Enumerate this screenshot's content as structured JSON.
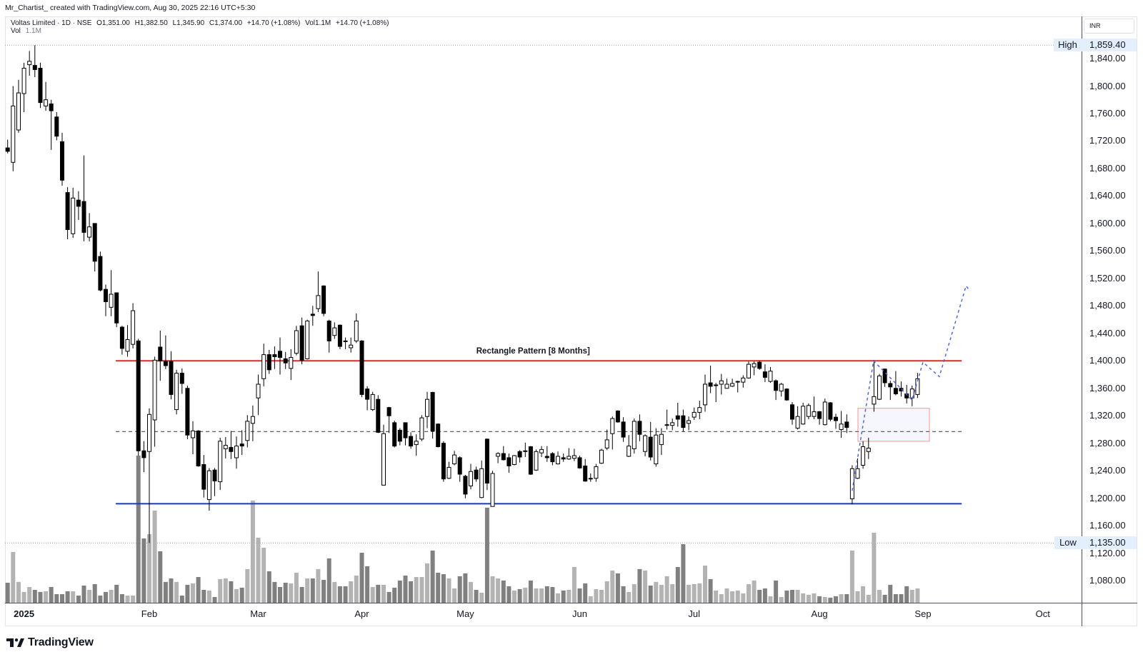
{
  "header": {
    "credit": "Mr_Chartist_ created with TradingView.com, Aug 30, 2025 22:16 UTC+5:30"
  },
  "legend": {
    "symbol": "Voltas Limited · 1D · NSE",
    "open": "O1,351.00",
    "high": "H1,382.50",
    "low": "L1,345.90",
    "close": "C1,374.00",
    "change": "+14.70 (+1.08%)",
    "volume": "Vol1.1M",
    "volume_change": "+14.70 (+1.08%)",
    "vol_row_label": "Vol",
    "vol_row_value": "1.1M"
  },
  "price_axis": {
    "currency": "INR",
    "high_label": "High",
    "high_value": "1,859.40",
    "low_label": "Low",
    "low_value": "1,135.00"
  },
  "branding": {
    "logo_text": "TradingView"
  },
  "chart_data": {
    "type": "candlestick",
    "title": "Voltas Limited · 1D · NSE",
    "xlabel": "",
    "ylabel": "INR",
    "ylim": [
      1048,
      1901
    ],
    "grid": false,
    "legend_position": "top-left",
    "y_ticks": [
      {
        "value": 1840,
        "label": "1,840.00"
      },
      {
        "value": 1800,
        "label": "1,800.00"
      },
      {
        "value": 1760,
        "label": "1,760.00"
      },
      {
        "value": 1720,
        "label": "1,720.00"
      },
      {
        "value": 1680,
        "label": "1,680.00"
      },
      {
        "value": 1640,
        "label": "1,640.00"
      },
      {
        "value": 1600,
        "label": "1,600.00"
      },
      {
        "value": 1560,
        "label": "1,560.00"
      },
      {
        "value": 1520,
        "label": "1,520.00"
      },
      {
        "value": 1480,
        "label": "1,480.00"
      },
      {
        "value": 1440,
        "label": "1,440.00"
      },
      {
        "value": 1400,
        "label": "1,400.00"
      },
      {
        "value": 1360,
        "label": "1,360.00"
      },
      {
        "value": 1320,
        "label": "1,320.00"
      },
      {
        "value": 1280,
        "label": "1,280.00"
      },
      {
        "value": 1240,
        "label": "1,240.00"
      },
      {
        "value": 1200,
        "label": "1,200.00"
      },
      {
        "value": 1160,
        "label": "1,160.00"
      },
      {
        "value": 1120,
        "label": "1,120.00"
      },
      {
        "value": 1080,
        "label": "1,080.00"
      }
    ],
    "x_ticks": [
      {
        "label": "2025",
        "bar": 4,
        "year": true
      },
      {
        "label": "Feb",
        "bar": 27
      },
      {
        "label": "Mar",
        "bar": 47
      },
      {
        "label": "Apr",
        "bar": 66
      },
      {
        "label": "May",
        "bar": 85
      },
      {
        "label": "Jun",
        "bar": 106
      },
      {
        "label": "Jul",
        "bar": 127
      },
      {
        "label": "Aug",
        "bar": 150
      },
      {
        "label": "Sep",
        "bar": 169
      },
      {
        "label": "Oct",
        "bar": 191
      }
    ],
    "high_marker": 1859.4,
    "low_marker": 1135.0,
    "colors": {
      "up_body": "#ffffff",
      "down_body": "#000000",
      "wick": "#000000",
      "volume_up": "#b3b3b3",
      "volume_down": "#808080",
      "resistance": "#e3262b",
      "support": "#1f35c4",
      "midline": "#5d606b",
      "zone_fill": "#f6f6ff",
      "zone_border": "#f3a7aa",
      "projection": "#4f6ae6",
      "marker_line": "#9598a1"
    },
    "ohlc_format": [
      "open",
      "high",
      "low",
      "close"
    ],
    "ohlc": [
      [
        1710,
        1722,
        1702,
        1705
      ],
      [
        1689,
        1800,
        1676,
        1771
      ],
      [
        1736,
        1809,
        1732,
        1790
      ],
      [
        1789,
        1834,
        1762,
        1826
      ],
      [
        1831,
        1851,
        1815,
        1836
      ],
      [
        1830,
        1859.4,
        1813,
        1824
      ],
      [
        1826,
        1834,
        1768,
        1776
      ],
      [
        1771,
        1806,
        1764,
        1780
      ],
      [
        1774,
        1780,
        1707,
        1764
      ],
      [
        1755,
        1762,
        1721,
        1727
      ],
      [
        1719,
        1732,
        1655,
        1663
      ],
      [
        1645,
        1653,
        1577,
        1591
      ],
      [
        1585,
        1652,
        1579,
        1637
      ],
      [
        1634,
        1647,
        1605,
        1625
      ],
      [
        1632,
        1699,
        1574,
        1587
      ],
      [
        1580,
        1615,
        1574,
        1595
      ],
      [
        1600,
        1600,
        1530,
        1545
      ],
      [
        1552,
        1559,
        1501,
        1503
      ],
      [
        1504,
        1511,
        1465,
        1486
      ],
      [
        1478,
        1532,
        1465,
        1497
      ],
      [
        1499,
        1499,
        1449,
        1455
      ],
      [
        1449,
        1451,
        1409,
        1418
      ],
      [
        1414,
        1452,
        1406,
        1431
      ],
      [
        1424,
        1484,
        1418,
        1473
      ],
      [
        1429,
        1432,
        1262,
        1269
      ],
      [
        1269,
        1283,
        1238,
        1259
      ],
      [
        1268,
        1331,
        1135,
        1322
      ],
      [
        1314,
        1406,
        1275,
        1401
      ],
      [
        1420,
        1444,
        1371,
        1400
      ],
      [
        1399,
        1437,
        1388,
        1393
      ],
      [
        1399,
        1414,
        1344,
        1351
      ],
      [
        1329,
        1387,
        1322,
        1382
      ],
      [
        1382,
        1389,
        1352,
        1367
      ],
      [
        1360,
        1364,
        1286,
        1292
      ],
      [
        1288,
        1312,
        1264,
        1298
      ],
      [
        1298,
        1299,
        1246,
        1247
      ],
      [
        1249,
        1263,
        1201,
        1213
      ],
      [
        1198,
        1244,
        1182,
        1240
      ],
      [
        1241,
        1244,
        1203,
        1225
      ],
      [
        1224,
        1288,
        1212,
        1283
      ],
      [
        1272,
        1289,
        1258,
        1277
      ],
      [
        1274,
        1298,
        1257,
        1268
      ],
      [
        1259,
        1290,
        1243,
        1276
      ],
      [
        1279,
        1299,
        1263,
        1276
      ],
      [
        1284,
        1321,
        1274,
        1312
      ],
      [
        1309,
        1335,
        1283,
        1319
      ],
      [
        1346,
        1380,
        1321,
        1366
      ],
      [
        1374,
        1425,
        1363,
        1409
      ],
      [
        1409,
        1416,
        1381,
        1387
      ],
      [
        1409,
        1421,
        1388,
        1406
      ],
      [
        1414,
        1434,
        1380,
        1405
      ],
      [
        1403,
        1413,
        1388,
        1397
      ],
      [
        1389,
        1417,
        1372,
        1405
      ],
      [
        1411,
        1451,
        1408,
        1444
      ],
      [
        1451,
        1463,
        1395,
        1401
      ],
      [
        1403,
        1460,
        1402,
        1458
      ],
      [
        1468,
        1480,
        1451,
        1466
      ],
      [
        1476,
        1530,
        1471,
        1495
      ],
      [
        1509,
        1510,
        1465,
        1469
      ],
      [
        1458,
        1460,
        1412,
        1429
      ],
      [
        1437,
        1456,
        1432,
        1448
      ],
      [
        1452,
        1453,
        1417,
        1421
      ],
      [
        1429,
        1434,
        1417,
        1428
      ],
      [
        1419,
        1434,
        1412,
        1423
      ],
      [
        1429,
        1469,
        1426,
        1458
      ],
      [
        1429,
        1430,
        1347,
        1351
      ],
      [
        1359,
        1363,
        1328,
        1344
      ],
      [
        1329,
        1355,
        1327,
        1351
      ],
      [
        1344,
        1350,
        1295,
        1296
      ],
      [
        1219,
        1307,
        1219,
        1294
      ],
      [
        1332,
        1333,
        1295,
        1320
      ],
      [
        1310,
        1313,
        1274,
        1276
      ],
      [
        1299,
        1302,
        1277,
        1283
      ],
      [
        1310,
        1310,
        1277,
        1288
      ],
      [
        1290,
        1296,
        1272,
        1276
      ],
      [
        1278,
        1293,
        1262,
        1283
      ],
      [
        1286,
        1321,
        1283,
        1317
      ],
      [
        1319,
        1355,
        1302,
        1344
      ],
      [
        1354,
        1355,
        1287,
        1298
      ],
      [
        1308,
        1309,
        1274,
        1275
      ],
      [
        1280,
        1283,
        1224,
        1228
      ],
      [
        1229,
        1253,
        1228,
        1245
      ],
      [
        1250,
        1269,
        1248,
        1263
      ],
      [
        1259,
        1261,
        1224,
        1235
      ],
      [
        1232,
        1234,
        1200,
        1206
      ],
      [
        1218,
        1250,
        1213,
        1239
      ],
      [
        1241,
        1246,
        1224,
        1228
      ],
      [
        1201,
        1255,
        1200,
        1243
      ],
      [
        1286,
        1287,
        1212,
        1222
      ],
      [
        1188,
        1240,
        1188,
        1236
      ],
      [
        1261,
        1267,
        1251,
        1265
      ],
      [
        1265,
        1276,
        1255,
        1256
      ],
      [
        1259,
        1265,
        1237,
        1247
      ],
      [
        1249,
        1263,
        1248,
        1262
      ],
      [
        1268,
        1270,
        1252,
        1260
      ],
      [
        1268,
        1281,
        1260,
        1269
      ],
      [
        1275,
        1276,
        1234,
        1235
      ],
      [
        1241,
        1271,
        1240,
        1268
      ],
      [
        1266,
        1276,
        1260,
        1271
      ],
      [
        1261,
        1276,
        1253,
        1259
      ],
      [
        1265,
        1267,
        1248,
        1253
      ],
      [
        1250,
        1268,
        1249,
        1261
      ],
      [
        1259,
        1265,
        1253,
        1257
      ],
      [
        1257,
        1273,
        1256,
        1261
      ],
      [
        1258,
        1272,
        1254,
        1262
      ],
      [
        1259,
        1262,
        1243,
        1244
      ],
      [
        1247,
        1257,
        1224,
        1225
      ],
      [
        1228,
        1236,
        1224,
        1229
      ],
      [
        1229,
        1250,
        1224,
        1246
      ],
      [
        1251,
        1272,
        1250,
        1270
      ],
      [
        1273,
        1300,
        1270,
        1285
      ],
      [
        1294,
        1319,
        1271,
        1316
      ],
      [
        1327,
        1328,
        1310,
        1311
      ],
      [
        1311,
        1318,
        1282,
        1289
      ],
      [
        1261,
        1292,
        1260,
        1276
      ],
      [
        1272,
        1316,
        1265,
        1312
      ],
      [
        1312,
        1322,
        1283,
        1293
      ],
      [
        1268,
        1293,
        1261,
        1291
      ],
      [
        1289,
        1311,
        1255,
        1260
      ],
      [
        1250,
        1302,
        1246,
        1292
      ],
      [
        1278,
        1302,
        1263,
        1293
      ],
      [
        1306,
        1329,
        1300,
        1307
      ],
      [
        1306,
        1316,
        1299,
        1310
      ],
      [
        1320,
        1339,
        1304,
        1315
      ],
      [
        1320,
        1329,
        1297,
        1303
      ],
      [
        1309,
        1319,
        1299,
        1313
      ],
      [
        1318,
        1332,
        1314,
        1325
      ],
      [
        1325,
        1342,
        1315,
        1332
      ],
      [
        1336,
        1380,
        1326,
        1366
      ],
      [
        1368,
        1393,
        1353,
        1363
      ],
      [
        1364,
        1368,
        1340,
        1365
      ],
      [
        1366,
        1381,
        1351,
        1371
      ],
      [
        1360,
        1374,
        1360,
        1366
      ],
      [
        1363,
        1374,
        1362,
        1367
      ],
      [
        1369,
        1371,
        1354,
        1370
      ],
      [
        1369,
        1379,
        1361,
        1375
      ],
      [
        1375,
        1399,
        1374,
        1395
      ],
      [
        1391,
        1399,
        1379,
        1396
      ],
      [
        1398,
        1400,
        1387,
        1389
      ],
      [
        1384,
        1395,
        1369,
        1376
      ],
      [
        1370,
        1391,
        1368,
        1385
      ],
      [
        1371,
        1373,
        1343,
        1357
      ],
      [
        1356,
        1368,
        1348,
        1366
      ],
      [
        1359,
        1360,
        1342,
        1343
      ],
      [
        1336,
        1340,
        1307,
        1315
      ],
      [
        1302,
        1334,
        1300,
        1319
      ],
      [
        1308,
        1339,
        1307,
        1334
      ],
      [
        1319,
        1338,
        1315,
        1335
      ],
      [
        1319,
        1348,
        1315,
        1326
      ],
      [
        1326,
        1327,
        1307,
        1316
      ],
      [
        1307,
        1345,
        1306,
        1340
      ],
      [
        1339,
        1340,
        1312,
        1315
      ],
      [
        1318,
        1323,
        1301,
        1313
      ],
      [
        1300,
        1327,
        1288,
        1308
      ],
      [
        1311,
        1322,
        1295,
        1303
      ],
      [
        1199,
        1248,
        1191,
        1243
      ],
      [
        1229,
        1258,
        1228,
        1243
      ],
      [
        1248,
        1283,
        1243,
        1275
      ],
      [
        1268,
        1288,
        1257,
        1273
      ],
      [
        1337,
        1401,
        1326,
        1348
      ],
      [
        1344,
        1381,
        1343,
        1378
      ],
      [
        1388,
        1389,
        1362,
        1368
      ],
      [
        1367,
        1371,
        1343,
        1362
      ],
      [
        1360,
        1385,
        1350,
        1352
      ],
      [
        1360,
        1370,
        1348,
        1356
      ],
      [
        1352,
        1365,
        1338,
        1346
      ],
      [
        1346,
        1364,
        1334,
        1359
      ],
      [
        1351,
        1382.5,
        1345.9,
        1374
      ]
    ],
    "volume_unit": "M",
    "volume_m": [
      1.54,
      3.91,
      1.6,
      0.83,
      1.21,
      0.99,
      0.83,
      0.88,
      1.21,
      0.66,
      0.66,
      0.88,
      0.88,
      0.55,
      1.32,
      0.99,
      1.43,
      0.55,
      0.83,
      0.99,
      1.38,
      0.66,
      0.55,
      0.55,
      11.33,
      4.95,
      5.28,
      7.1,
      3.96,
      1.6,
      1.87,
      1.6,
      0.55,
      1.38,
      1.49,
      1.98,
      0.99,
      0.94,
      0.44,
      1.82,
      1.87,
      1.65,
      1.05,
      1.16,
      2.59,
      7.87,
      5.01,
      4.24,
      2.42,
      1.6,
      1.21,
      1.54,
      1.49,
      2.31,
      1.21,
      1.87,
      1.87,
      2.59,
      1.76,
      3.41,
      1.6,
      1.27,
      1.27,
      1.65,
      2.09,
      3.85,
      2.81,
      1.21,
      1.38,
      1.38,
      0.83,
      1.16,
      1.71,
      2.09,
      1.65,
      1.98,
      1.98,
      3.03,
      4.02,
      2.31,
      2.2,
      1.87,
      1.1,
      2.04,
      2.26,
      1.6,
      0.99,
      0.77,
      7.32,
      2.04,
      1.87,
      1.71,
      1.27,
      0.94,
      1.05,
      1.16,
      1.71,
      1.1,
      1.1,
      1.27,
      1.21,
      0.72,
      0.94,
      0.99,
      2.75,
      1.1,
      1.49,
      0.5,
      1.05,
      0.99,
      1.65,
      2.48,
      2.26,
      1.27,
      0.83,
      1.43,
      2.59,
      2.48,
      1.32,
      1.6,
      1.38,
      2.04,
      1.43,
      2.75,
      4.51,
      1.38,
      1.43,
      1.49,
      2.86,
      1.82,
      0.94,
      0.66,
      1.1,
      0.88,
      0.94,
      0.72,
      1.43,
      1.71,
      0.99,
      1.1,
      0.5,
      1.71,
      0.44,
      0.94,
      0.99,
      0.99,
      0.72,
      0.61,
      0.72,
      0.5,
      0.44,
      0.39,
      0.5,
      0.66,
      0.66,
      4.02,
      0.88,
      1.27,
      0.61,
      5.39,
      0.99,
      0.61,
      1.38,
      0.66,
      0.66,
      1.27,
      0.99,
      1.1
    ],
    "drawings": {
      "resistance": {
        "price": 1400,
        "from_bar": 20.85,
        "to_bar": 176.1
      },
      "support": {
        "price": 1192,
        "from_bar": 20.85,
        "to_bar": 176.1
      },
      "midline": {
        "price": 1297,
        "from_bar": 20.85,
        "to_bar": 176.1
      },
      "retest_zone": {
        "from_bar": 157.06,
        "to_bar": 170.17,
        "top": 1331,
        "bottom": 1283
      },
      "projection": [
        [
          156.0,
          1211
        ],
        [
          159.94,
          1400
        ],
        [
          167.0,
          1343
        ],
        [
          169.0,
          1398
        ],
        [
          172.0,
          1377
        ],
        [
          176.9,
          1509
        ],
        [
          177.4,
          1504
        ]
      ],
      "label": {
        "text": "Rectangle Pattern [8 Months]",
        "bar": 97.45,
        "price": 1408
      }
    }
  }
}
